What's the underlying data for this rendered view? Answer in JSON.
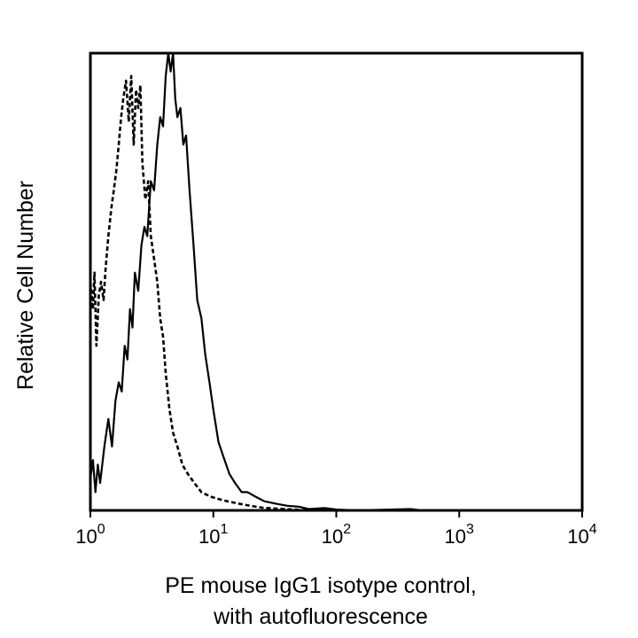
{
  "chart_data": {
    "type": "line",
    "title": "",
    "xlabel_lines": [
      "PE mouse IgG1 isotype control,",
      "with autofluorescence"
    ],
    "ylabel": "Relative Cell Number",
    "x_scale": "log",
    "xlim": [
      1,
      10000
    ],
    "ylim": [
      0,
      100
    ],
    "grid": false,
    "legend": "none",
    "x_ticks": [
      {
        "base": "10",
        "exp": "0",
        "value": 1
      },
      {
        "base": "10",
        "exp": "1",
        "value": 10
      },
      {
        "base": "10",
        "exp": "2",
        "value": 100
      },
      {
        "base": "10",
        "exp": "3",
        "value": 1000
      },
      {
        "base": "10",
        "exp": "4",
        "value": 10000
      }
    ],
    "series": [
      {
        "style": "dashed",
        "color": "#000000",
        "points": [
          [
            1.0,
            50
          ],
          [
            1.05,
            44
          ],
          [
            1.08,
            52
          ],
          [
            1.12,
            36
          ],
          [
            1.17,
            47
          ],
          [
            1.22,
            50
          ],
          [
            1.28,
            46
          ],
          [
            1.33,
            53
          ],
          [
            1.4,
            60
          ],
          [
            1.48,
            66
          ],
          [
            1.55,
            70
          ],
          [
            1.62,
            74
          ],
          [
            1.7,
            80
          ],
          [
            1.78,
            86
          ],
          [
            1.85,
            90
          ],
          [
            1.95,
            94
          ],
          [
            2.05,
            85
          ],
          [
            2.15,
            95
          ],
          [
            2.25,
            80
          ],
          [
            2.35,
            92
          ],
          [
            2.45,
            88
          ],
          [
            2.55,
            93
          ],
          [
            2.65,
            76
          ],
          [
            2.8,
            68
          ],
          [
            2.95,
            72
          ],
          [
            3.1,
            60
          ],
          [
            3.3,
            55
          ],
          [
            3.5,
            50
          ],
          [
            3.7,
            42
          ],
          [
            3.9,
            38
          ],
          [
            4.1,
            30
          ],
          [
            4.4,
            22
          ],
          [
            4.7,
            17
          ],
          [
            5.1,
            14
          ],
          [
            5.6,
            10
          ],
          [
            6.2,
            8
          ],
          [
            7.0,
            6
          ],
          [
            8.0,
            4
          ],
          [
            9.5,
            3
          ],
          [
            11.0,
            2.5
          ],
          [
            13.0,
            2
          ],
          [
            16.0,
            1.5
          ],
          [
            20.0,
            1
          ],
          [
            25.0,
            0.6
          ],
          [
            32.0,
            0.4
          ],
          [
            45.0,
            0.2
          ],
          [
            60.0,
            0
          ]
        ]
      },
      {
        "style": "solid",
        "color": "#000000",
        "points": [
          [
            1.0,
            7
          ],
          [
            1.05,
            11
          ],
          [
            1.1,
            4
          ],
          [
            1.15,
            10
          ],
          [
            1.2,
            6
          ],
          [
            1.3,
            14
          ],
          [
            1.4,
            20
          ],
          [
            1.5,
            14
          ],
          [
            1.6,
            24
          ],
          [
            1.7,
            28
          ],
          [
            1.8,
            26
          ],
          [
            1.9,
            36
          ],
          [
            2.0,
            33
          ],
          [
            2.1,
            44
          ],
          [
            2.2,
            40
          ],
          [
            2.3,
            52
          ],
          [
            2.45,
            48
          ],
          [
            2.6,
            58
          ],
          [
            2.75,
            62
          ],
          [
            2.9,
            60
          ],
          [
            3.1,
            72
          ],
          [
            3.3,
            70
          ],
          [
            3.5,
            80
          ],
          [
            3.7,
            86
          ],
          [
            3.9,
            84
          ],
          [
            4.1,
            95
          ],
          [
            4.3,
            100
          ],
          [
            4.5,
            96
          ],
          [
            4.7,
            100
          ],
          [
            4.9,
            90
          ],
          [
            5.1,
            86
          ],
          [
            5.4,
            88
          ],
          [
            5.7,
            80
          ],
          [
            6.0,
            82
          ],
          [
            6.4,
            70
          ],
          [
            6.9,
            58
          ],
          [
            7.4,
            46
          ],
          [
            8.0,
            42
          ],
          [
            8.6,
            34
          ],
          [
            9.3,
            28
          ],
          [
            10.0,
            22
          ],
          [
            11.0,
            15
          ],
          [
            12.0,
            12
          ],
          [
            13.5,
            8
          ],
          [
            15.0,
            6
          ],
          [
            17.0,
            4
          ],
          [
            19.0,
            4
          ],
          [
            22.0,
            3
          ],
          [
            26.0,
            2
          ],
          [
            32.0,
            1.5
          ],
          [
            40.0,
            1
          ],
          [
            50.0,
            0.8
          ],
          [
            60.0,
            0.3
          ],
          [
            80.0,
            0.5
          ],
          [
            100.0,
            0.2
          ],
          [
            150.0,
            0
          ],
          [
            400.0,
            0.3
          ],
          [
            500.0,
            0
          ]
        ]
      }
    ]
  }
}
